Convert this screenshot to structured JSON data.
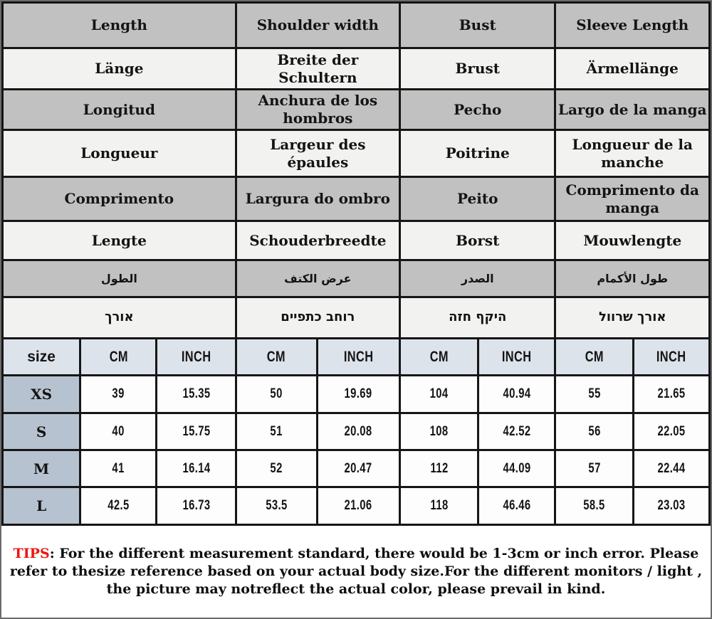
{
  "table": {
    "language_rows": [
      {
        "lang": "english",
        "cells": [
          "Length",
          "Shoulder width",
          "Bust",
          "Sleeve Length"
        ]
      },
      {
        "lang": "german",
        "cells": [
          "Länge",
          "Breite der Schultern",
          "Brust",
          "Ärmellänge"
        ]
      },
      {
        "lang": "spanish",
        "cells": [
          "Longitud",
          "Anchura de los hombros",
          "Pecho",
          "Largo de la manga"
        ]
      },
      {
        "lang": "french",
        "cells": [
          "Longueur",
          "Largeur des épaules",
          "Poitrine",
          "Longueur de la manche"
        ]
      },
      {
        "lang": "portuguese",
        "cells": [
          "Comprimento",
          "Largura do ombro",
          "Peito",
          "Comprimento da manga"
        ]
      },
      {
        "lang": "dutch",
        "cells": [
          "Lengte",
          "Schouderbreedte",
          "Borst",
          "Mouwlengte"
        ]
      },
      {
        "lang": "arabic",
        "cells": [
          "الطول",
          "عرض الكتف",
          "الصدر",
          "طول الأكمام"
        ]
      },
      {
        "lang": "hebrew",
        "cells": [
          "אורך",
          "רוחב כתפיים",
          "היקף חזה",
          "אורך שרוול"
        ]
      }
    ],
    "size_header": [
      "size",
      "CM",
      "INCH",
      "CM",
      "INCH",
      "CM",
      "INCH",
      "CM",
      "INCH"
    ],
    "rows": [
      {
        "size": "XS",
        "values": [
          "39",
          "15.35",
          "50",
          "19.69",
          "104",
          "40.94",
          "55",
          "21.65"
        ]
      },
      {
        "size": "S",
        "values": [
          "40",
          "15.75",
          "51",
          "20.08",
          "108",
          "42.52",
          "56",
          "22.05"
        ]
      },
      {
        "size": "M",
        "values": [
          "41",
          "16.14",
          "52",
          "20.47",
          "112",
          "44.09",
          "57",
          "22.44"
        ]
      },
      {
        "size": "L",
        "values": [
          "42.5",
          "16.73",
          "53.5",
          "21.06",
          "118",
          "46.46",
          "58.5",
          "23.03"
        ]
      }
    ]
  },
  "tips": {
    "label": "TIPS",
    "separator": ": ",
    "text": "For the different measurement standard, there would be 1-3cm or inch error. Please refer to thesize reference based on your actual body size.For the different monitors / light , the picture may notreflect the actual color, please prevail in kind."
  },
  "colors": {
    "row_gray": "#c1c1c1",
    "row_light": "#f2f2f0",
    "unit_header_bg": "#dde3ea",
    "size_cell_bg": "#b6c2d0",
    "data_cell_bg": "#fdfdfd",
    "border": "#161616",
    "tips_label_red": "#ee1511"
  }
}
